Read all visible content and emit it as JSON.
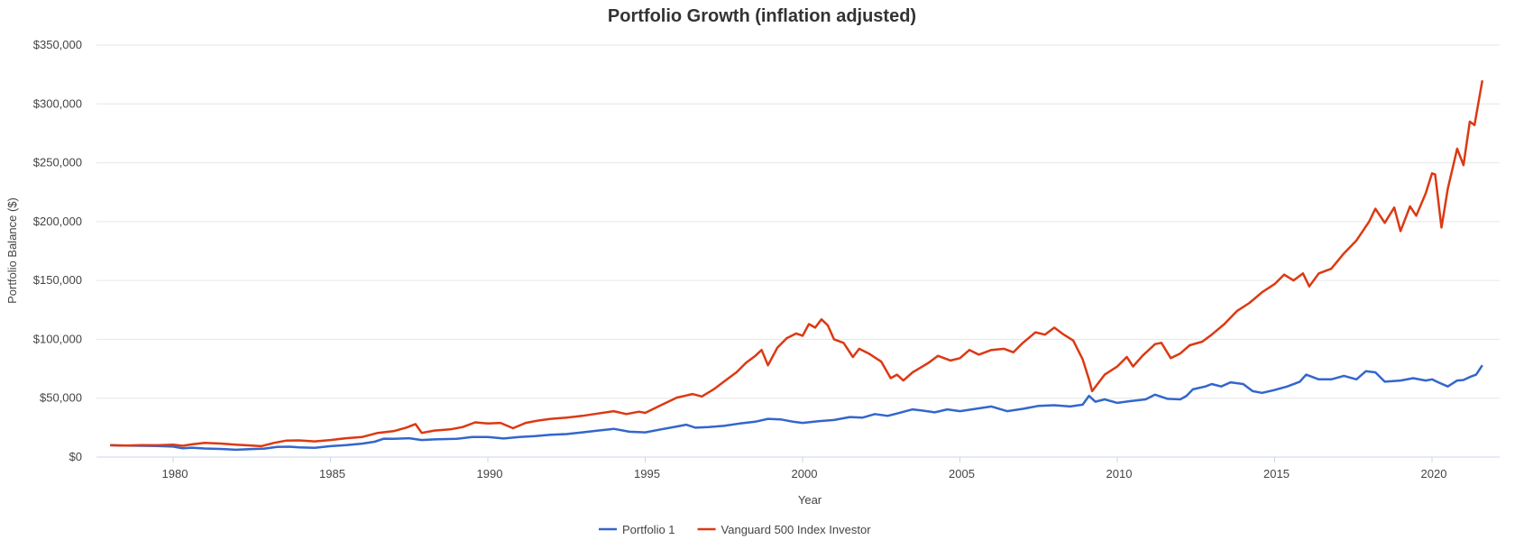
{
  "chart_data": {
    "type": "line",
    "title": "Portfolio Growth (inflation adjusted)",
    "xlabel": "Year",
    "ylabel": "Portfolio Balance ($)",
    "xlim": [
      1978,
      2021.9
    ],
    "ylim": [
      0,
      350000
    ],
    "x_ticks": [
      1980,
      1985,
      1990,
      1995,
      2000,
      2005,
      2010,
      2015,
      2020
    ],
    "y_ticks": [
      0,
      50000,
      100000,
      150000,
      200000,
      250000,
      300000,
      350000
    ],
    "y_tick_labels": [
      "$0",
      "$50,000",
      "$100,000",
      "$150,000",
      "$200,000",
      "$250,000",
      "$300,000",
      "$350,000"
    ],
    "grid": true,
    "legend_position": "bottom",
    "series": [
      {
        "name": "Portfolio 1",
        "color": "#3366cc",
        "points": [
          [
            1978.0,
            10000
          ],
          [
            1978.5,
            9800
          ],
          [
            1979.0,
            9600
          ],
          [
            1979.5,
            9400
          ],
          [
            1980.0,
            8900
          ],
          [
            1980.3,
            7400
          ],
          [
            1980.6,
            8000
          ],
          [
            1981.0,
            7300
          ],
          [
            1981.5,
            6900
          ],
          [
            1982.0,
            6200
          ],
          [
            1982.5,
            6800
          ],
          [
            1982.9,
            7200
          ],
          [
            1983.3,
            8600
          ],
          [
            1983.7,
            8800
          ],
          [
            1984.0,
            8300
          ],
          [
            1984.5,
            7800
          ],
          [
            1985.0,
            9300
          ],
          [
            1985.5,
            10200
          ],
          [
            1986.0,
            11400
          ],
          [
            1986.4,
            13000
          ],
          [
            1986.7,
            15600
          ],
          [
            1987.0,
            15500
          ],
          [
            1987.5,
            16000
          ],
          [
            1987.9,
            14500
          ],
          [
            1988.3,
            15000
          ],
          [
            1989.0,
            15500
          ],
          [
            1989.5,
            17000
          ],
          [
            1990.0,
            17100
          ],
          [
            1990.5,
            15800
          ],
          [
            1991.0,
            17000
          ],
          [
            1991.5,
            17800
          ],
          [
            1992.0,
            19000
          ],
          [
            1992.5,
            19500
          ],
          [
            1993.0,
            21000
          ],
          [
            1993.5,
            22500
          ],
          [
            1994.0,
            24000
          ],
          [
            1994.5,
            21500
          ],
          [
            1995.0,
            21000
          ],
          [
            1995.5,
            23500
          ],
          [
            1996.0,
            26000
          ],
          [
            1996.3,
            27500
          ],
          [
            1996.6,
            25000
          ],
          [
            1997.0,
            25500
          ],
          [
            1997.5,
            26500
          ],
          [
            1998.0,
            28500
          ],
          [
            1998.5,
            30000
          ],
          [
            1998.9,
            32500
          ],
          [
            1999.3,
            32000
          ],
          [
            1999.7,
            30000
          ],
          [
            2000.0,
            29000
          ],
          [
            2000.5,
            30500
          ],
          [
            2001.0,
            31500
          ],
          [
            2001.5,
            34000
          ],
          [
            2001.9,
            33500
          ],
          [
            2002.3,
            36500
          ],
          [
            2002.7,
            35000
          ],
          [
            2003.0,
            37000
          ],
          [
            2003.5,
            40500
          ],
          [
            2003.8,
            39500
          ],
          [
            2004.2,
            38000
          ],
          [
            2004.6,
            40500
          ],
          [
            2005.0,
            39000
          ],
          [
            2005.5,
            41000
          ],
          [
            2006.0,
            43000
          ],
          [
            2006.5,
            39000
          ],
          [
            2007.0,
            41000
          ],
          [
            2007.5,
            43500
          ],
          [
            2008.0,
            44000
          ],
          [
            2008.5,
            43000
          ],
          [
            2008.9,
            44500
          ],
          [
            2009.1,
            52000
          ],
          [
            2009.3,
            47000
          ],
          [
            2009.6,
            49000
          ],
          [
            2010.0,
            46000
          ],
          [
            2010.4,
            47500
          ],
          [
            2010.9,
            49000
          ],
          [
            2011.2,
            53000
          ],
          [
            2011.6,
            49500
          ],
          [
            2012.0,
            49000
          ],
          [
            2012.2,
            52000
          ],
          [
            2012.4,
            57500
          ],
          [
            2012.8,
            60000
          ],
          [
            2013.0,
            62000
          ],
          [
            2013.3,
            60000
          ],
          [
            2013.6,
            63500
          ],
          [
            2014.0,
            62000
          ],
          [
            2014.3,
            56000
          ],
          [
            2014.6,
            54500
          ],
          [
            2015.0,
            57000
          ],
          [
            2015.4,
            60000
          ],
          [
            2015.8,
            64000
          ],
          [
            2016.0,
            70000
          ],
          [
            2016.4,
            66000
          ],
          [
            2016.8,
            66000
          ],
          [
            2017.2,
            69000
          ],
          [
            2017.6,
            66000
          ],
          [
            2017.9,
            73000
          ],
          [
            2018.2,
            72000
          ],
          [
            2018.5,
            64000
          ],
          [
            2019.0,
            65000
          ],
          [
            2019.4,
            67000
          ],
          [
            2019.8,
            65000
          ],
          [
            2020.0,
            66000
          ],
          [
            2020.2,
            63500
          ],
          [
            2020.5,
            60000
          ],
          [
            2020.8,
            65000
          ],
          [
            2021.0,
            65500
          ],
          [
            2021.2,
            68000
          ],
          [
            2021.4,
            70000
          ],
          [
            2021.6,
            78000
          ]
        ]
      },
      {
        "name": "Vanguard 500 Index Investor",
        "color": "#dc3912",
        "points": [
          [
            1978.0,
            10000
          ],
          [
            1978.5,
            9800
          ],
          [
            1979.0,
            10200
          ],
          [
            1979.5,
            10000
          ],
          [
            1980.0,
            10500
          ],
          [
            1980.3,
            9600
          ],
          [
            1980.6,
            10800
          ],
          [
            1981.0,
            12000
          ],
          [
            1981.5,
            11500
          ],
          [
            1982.0,
            10500
          ],
          [
            1982.5,
            9800
          ],
          [
            1982.8,
            9300
          ],
          [
            1983.2,
            12000
          ],
          [
            1983.6,
            14000
          ],
          [
            1984.0,
            14200
          ],
          [
            1984.5,
            13300
          ],
          [
            1985.0,
            14500
          ],
          [
            1985.5,
            16000
          ],
          [
            1986.0,
            17000
          ],
          [
            1986.5,
            20500
          ],
          [
            1987.0,
            22000
          ],
          [
            1987.4,
            25000
          ],
          [
            1987.7,
            28000
          ],
          [
            1987.9,
            20500
          ],
          [
            1988.3,
            22500
          ],
          [
            1988.8,
            23500
          ],
          [
            1989.2,
            25500
          ],
          [
            1989.6,
            29500
          ],
          [
            1990.0,
            28500
          ],
          [
            1990.4,
            29000
          ],
          [
            1990.8,
            24500
          ],
          [
            1991.2,
            29000
          ],
          [
            1991.6,
            31000
          ],
          [
            1992.0,
            32500
          ],
          [
            1992.5,
            33500
          ],
          [
            1993.0,
            35000
          ],
          [
            1993.5,
            37000
          ],
          [
            1994.0,
            39000
          ],
          [
            1994.4,
            36500
          ],
          [
            1994.8,
            38500
          ],
          [
            1995.0,
            37500
          ],
          [
            1995.5,
            44000
          ],
          [
            1996.0,
            50500
          ],
          [
            1996.5,
            53500
          ],
          [
            1996.8,
            51500
          ],
          [
            1997.2,
            58000
          ],
          [
            1997.6,
            66000
          ],
          [
            1997.9,
            72000
          ],
          [
            1998.2,
            80000
          ],
          [
            1998.5,
            86000
          ],
          [
            1998.7,
            91000
          ],
          [
            1998.9,
            78000
          ],
          [
            1999.2,
            93000
          ],
          [
            1999.5,
            101000
          ],
          [
            1999.8,
            105000
          ],
          [
            2000.0,
            103000
          ],
          [
            2000.2,
            113000
          ],
          [
            2000.4,
            110000
          ],
          [
            2000.6,
            117000
          ],
          [
            2000.8,
            112000
          ],
          [
            2001.0,
            100000
          ],
          [
            2001.3,
            97000
          ],
          [
            2001.6,
            85000
          ],
          [
            2001.8,
            92000
          ],
          [
            2002.1,
            88000
          ],
          [
            2002.5,
            81000
          ],
          [
            2002.8,
            67000
          ],
          [
            2003.0,
            70000
          ],
          [
            2003.2,
            65000
          ],
          [
            2003.5,
            72000
          ],
          [
            2004.0,
            80000
          ],
          [
            2004.3,
            86000
          ],
          [
            2004.7,
            82000
          ],
          [
            2005.0,
            84000
          ],
          [
            2005.3,
            91000
          ],
          [
            2005.6,
            87000
          ],
          [
            2006.0,
            91000
          ],
          [
            2006.4,
            92000
          ],
          [
            2006.7,
            89000
          ],
          [
            2007.0,
            97000
          ],
          [
            2007.4,
            106000
          ],
          [
            2007.7,
            104000
          ],
          [
            2008.0,
            110000
          ],
          [
            2008.3,
            104000
          ],
          [
            2008.6,
            99000
          ],
          [
            2008.9,
            83000
          ],
          [
            2009.1,
            66000
          ],
          [
            2009.2,
            56000
          ],
          [
            2009.6,
            70000
          ],
          [
            2010.0,
            77000
          ],
          [
            2010.3,
            85000
          ],
          [
            2010.5,
            77000
          ],
          [
            2010.8,
            86000
          ],
          [
            2011.2,
            96000
          ],
          [
            2011.4,
            97000
          ],
          [
            2011.7,
            84000
          ],
          [
            2012.0,
            88000
          ],
          [
            2012.3,
            95000
          ],
          [
            2012.7,
            98000
          ],
          [
            2013.0,
            104000
          ],
          [
            2013.4,
            113000
          ],
          [
            2013.8,
            124000
          ],
          [
            2014.2,
            131000
          ],
          [
            2014.6,
            140000
          ],
          [
            2015.0,
            147000
          ],
          [
            2015.3,
            155000
          ],
          [
            2015.6,
            150000
          ],
          [
            2015.9,
            156000
          ],
          [
            2016.1,
            145000
          ],
          [
            2016.4,
            156000
          ],
          [
            2016.8,
            160000
          ],
          [
            2017.2,
            173000
          ],
          [
            2017.6,
            184000
          ],
          [
            2018.0,
            200000
          ],
          [
            2018.2,
            211000
          ],
          [
            2018.5,
            199000
          ],
          [
            2018.8,
            212000
          ],
          [
            2019.0,
            192000
          ],
          [
            2019.3,
            213000
          ],
          [
            2019.5,
            205000
          ],
          [
            2019.8,
            224000
          ],
          [
            2020.0,
            241000
          ],
          [
            2020.1,
            240000
          ],
          [
            2020.3,
            195000
          ],
          [
            2020.5,
            228000
          ],
          [
            2020.8,
            262000
          ],
          [
            2021.0,
            248000
          ],
          [
            2021.2,
            285000
          ],
          [
            2021.35,
            282000
          ],
          [
            2021.6,
            320000
          ]
        ]
      }
    ]
  }
}
